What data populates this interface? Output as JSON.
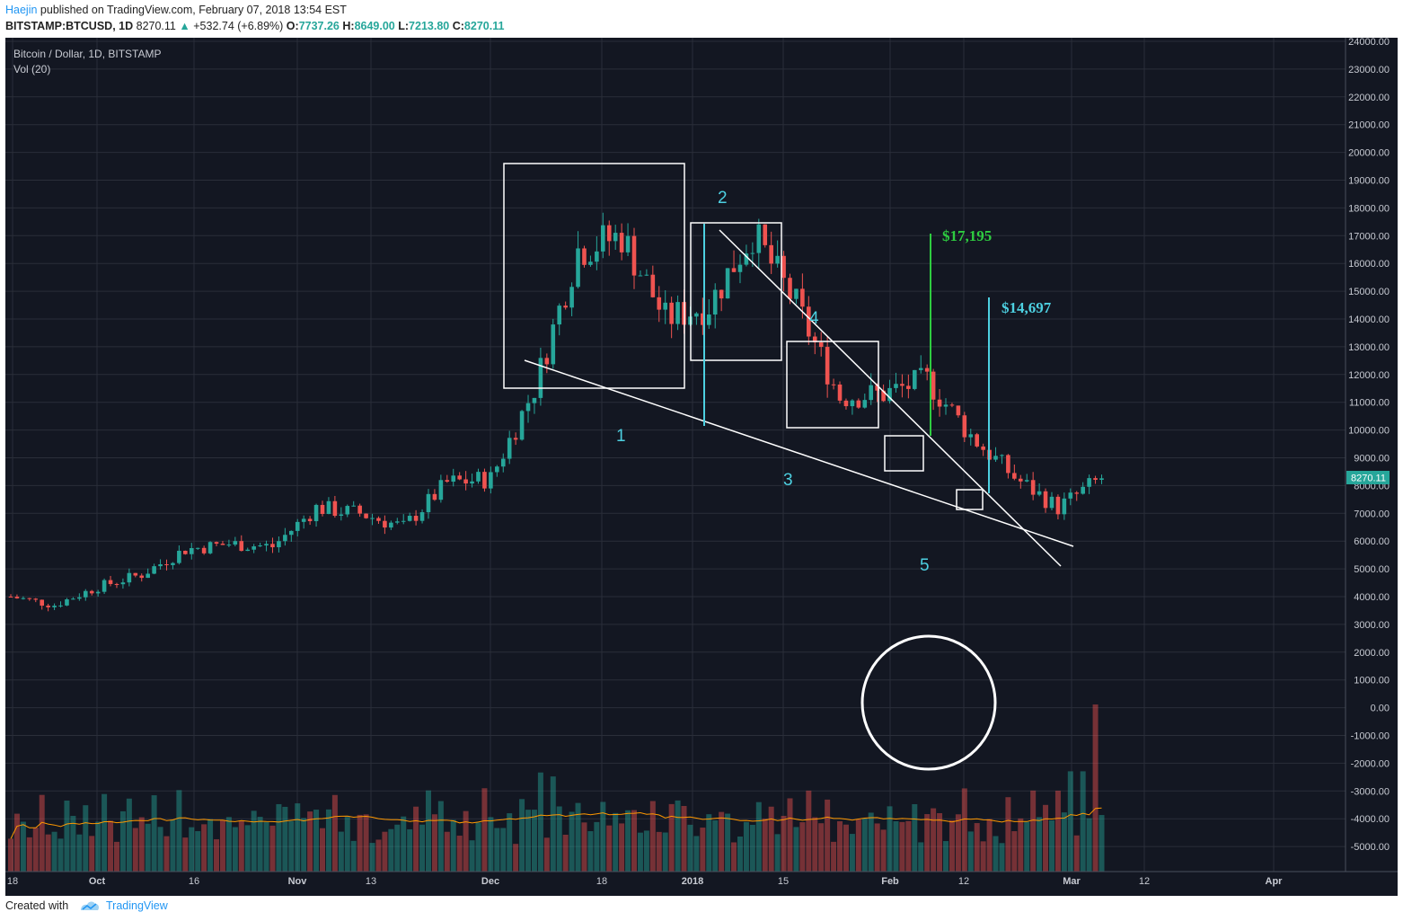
{
  "header": {
    "author": "Haejin",
    "published_text": "published on TradingView.com, February 07, 2018 13:54 EST",
    "symbol": "BITSTAMP:BTCUSD, 1D",
    "last": "8270.11",
    "arrow": "▲",
    "change": "+532.74 (+6.89%)",
    "o_label": "O:",
    "o_val": "7737.26",
    "h_label": "H:",
    "h_val": "8649.00",
    "l_label": "L:",
    "l_val": "7213.80",
    "c_label": "C:",
    "c_val": "8270.11"
  },
  "legend": {
    "title": "Bitcoin / Dollar, 1D, BITSTAMP",
    "vol": "Vol (20)"
  },
  "price_tag": "8270.11",
  "annotations": {
    "waves": [
      "1",
      "2",
      "3",
      "4",
      "5"
    ],
    "target_green": "$17,195",
    "target_cyan": "$14,697"
  },
  "footer": {
    "created_with": "Created with",
    "brand": "TradingView"
  },
  "colors": {
    "background": "#131722",
    "up": "#26a69a",
    "down": "#ef5350",
    "grid": "#2a2e39",
    "annotation_cyan": "#4dd0e1",
    "annotation_green": "#2ecc40",
    "ma": "#ff9800"
  },
  "chart_data": {
    "type": "candlestick",
    "symbol": "BITSTAMP:BTCUSD",
    "interval": "1D",
    "y_axis_ticks": [
      "24000.00",
      "23000.00",
      "22000.00",
      "21000.00",
      "20000.00",
      "19000.00",
      "18000.00",
      "17000.00",
      "16000.00",
      "15000.00",
      "14000.00",
      "13000.00",
      "12000.00",
      "11000.00",
      "10000.00",
      "9000.00",
      "8000.00",
      "7000.00",
      "6000.00",
      "5000.00",
      "4000.00",
      "3000.00",
      "2000.00",
      "1000.00",
      "0.00",
      "-1000.00",
      "-2000.00",
      "-3000.00",
      "-4000.00",
      "-5000.00"
    ],
    "ylim": [
      -5000,
      24000
    ],
    "x_axis_ticks": [
      "18",
      "Oct",
      "16",
      "Nov",
      "13",
      "Dec",
      "18",
      "2018",
      "15",
      "Feb",
      "12",
      "Mar",
      "12",
      "Apr"
    ],
    "weekly_closes_approx": [
      4000,
      3700,
      4350,
      4800,
      5700,
      5900,
      5800,
      7200,
      7000,
      6500,
      8100,
      8250,
      11500,
      16500,
      17000,
      14000,
      14500,
      17100,
      14500,
      11200,
      11300,
      11800,
      9800,
      8300,
      7200,
      8270
    ],
    "volume_ma_period": 20
  }
}
